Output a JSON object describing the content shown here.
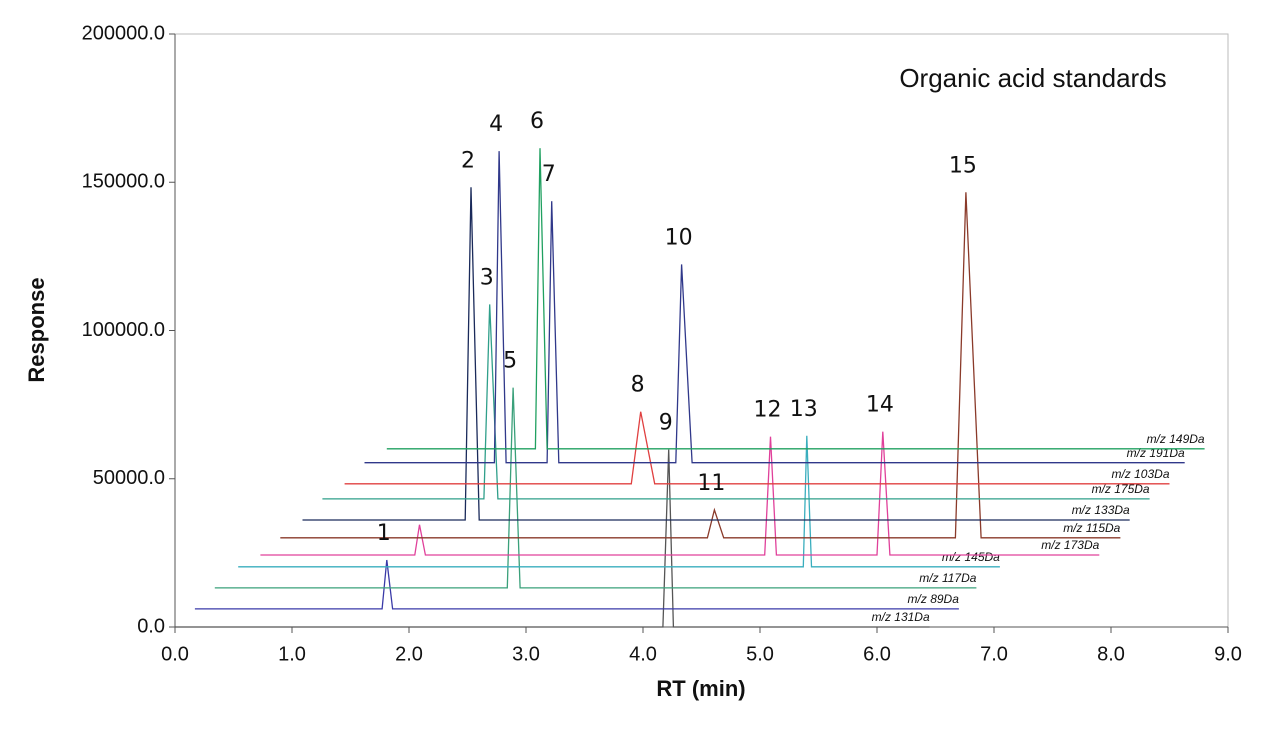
{
  "chart_data": {
    "type": "line",
    "title": "Organic acid standards",
    "xlabel": "RT (min)",
    "ylabel": "Response",
    "xlim": [
      0,
      9
    ],
    "ylim": [
      0,
      200000
    ],
    "xticks": [
      {
        "value": 0,
        "label": "0.0"
      },
      {
        "value": 1,
        "label": "1.0"
      },
      {
        "value": 2,
        "label": "2.0"
      },
      {
        "value": 3,
        "label": "3.0"
      },
      {
        "value": 4,
        "label": "4.0"
      },
      {
        "value": 5,
        "label": "5.0"
      },
      {
        "value": 6,
        "label": "6.0"
      },
      {
        "value": 7,
        "label": "7.0"
      },
      {
        "value": 8,
        "label": "8.0"
      },
      {
        "value": 9,
        "label": "9.0"
      }
    ],
    "yticks": [
      {
        "value": 0,
        "label": "0.0"
      },
      {
        "value": 50000,
        "label": "50000.0"
      },
      {
        "value": 100000,
        "label": "100000.0"
      },
      {
        "value": 150000,
        "label": "150000.0"
      },
      {
        "value": 200000,
        "label": "200000.0"
      }
    ],
    "series": [
      {
        "name": "m/z 131Da",
        "color": "#555555",
        "x": [
          0.0,
          4.17,
          4.22,
          4.26,
          6.45
        ],
        "values": [
          0,
          0,
          59800,
          0,
          0
        ]
      },
      {
        "name": "m/z 89Da",
        "color": "#3a3aa8",
        "x": [
          0.17,
          1.77,
          1.81,
          1.86,
          6.7
        ],
        "values": [
          6100,
          6100,
          22600,
          6100,
          6100
        ]
      },
      {
        "name": "m/z 117Da",
        "color": "#3aa07a",
        "x": [
          0.34,
          2.84,
          2.89,
          2.95,
          6.85
        ],
        "values": [
          13200,
          13200,
          80700,
          13200,
          13200
        ]
      },
      {
        "name": "m/z 145Da",
        "color": "#3aaebe",
        "x": [
          0.54,
          5.37,
          5.4,
          5.44,
          7.05
        ],
        "values": [
          20300,
          20300,
          64500,
          20300,
          20300
        ]
      },
      {
        "name": "m/z 173Da",
        "color": "#e0409a",
        "x": [
          0.73,
          2.05,
          2.09,
          2.14,
          5.04,
          5.09,
          5.14,
          6.0,
          6.05,
          6.11,
          7.9
        ],
        "values": [
          24300,
          24300,
          34500,
          24300,
          24300,
          64200,
          24300,
          24300,
          65900,
          24300,
          24300
        ]
      },
      {
        "name": "m/z 115Da",
        "color": "#8a3a2a",
        "x": [
          0.9,
          4.55,
          4.61,
          4.69,
          6.67,
          6.76,
          6.89,
          8.08
        ],
        "values": [
          30100,
          30100,
          39500,
          30100,
          30100,
          146600,
          30100,
          30100
        ]
      },
      {
        "name": "m/z 133Da",
        "color": "#1a2a5a",
        "x": [
          1.09,
          2.48,
          2.53,
          2.6,
          8.16
        ],
        "values": [
          36100,
          36100,
          148300,
          36100,
          36100
        ]
      },
      {
        "name": "m/z 175Da",
        "color": "#2f9f8a",
        "x": [
          1.26,
          2.64,
          2.69,
          2.76,
          8.33
        ],
        "values": [
          43200,
          43200,
          108800,
          43200,
          43200
        ]
      },
      {
        "name": "m/z 103Da",
        "color": "#e04040",
        "x": [
          1.45,
          3.9,
          3.98,
          4.1,
          8.5
        ],
        "values": [
          48300,
          48300,
          72600,
          48300,
          48300
        ]
      },
      {
        "name": "m/z 191Da",
        "color": "#30388a",
        "x": [
          1.62,
          2.73,
          2.77,
          2.83,
          3.18,
          3.22,
          3.28,
          4.28,
          4.33,
          4.42,
          8.63
        ],
        "values": [
          55400,
          55400,
          160500,
          55400,
          55400,
          143600,
          55400,
          55400,
          122300,
          55400,
          55400
        ]
      },
      {
        "name": "m/z 149Da",
        "color": "#20a060",
        "x": [
          1.81,
          3.08,
          3.12,
          3.18,
          8.8
        ],
        "values": [
          60100,
          60100,
          161500,
          60100,
          60100
        ]
      }
    ],
    "annotations": [
      {
        "text": "1",
        "x": 1.81,
        "y": 22600
      },
      {
        "text": "2",
        "x": 2.53,
        "y": 148300
      },
      {
        "text": "3",
        "x": 2.69,
        "y": 108800
      },
      {
        "text": "4",
        "x": 2.77,
        "y": 160500
      },
      {
        "text": "5",
        "x": 2.89,
        "y": 80700
      },
      {
        "text": "6",
        "x": 3.12,
        "y": 161500
      },
      {
        "text": "7",
        "x": 3.22,
        "y": 143600
      },
      {
        "text": "8",
        "x": 3.98,
        "y": 72600
      },
      {
        "text": "9",
        "x": 4.22,
        "y": 59800
      },
      {
        "text": "10",
        "x": 4.33,
        "y": 122300
      },
      {
        "text": "11",
        "x": 4.61,
        "y": 39500
      },
      {
        "text": "12",
        "x": 5.09,
        "y": 64200
      },
      {
        "text": "13",
        "x": 5.4,
        "y": 64500
      },
      {
        "text": "14",
        "x": 6.05,
        "y": 65900
      },
      {
        "text": "15",
        "x": 6.76,
        "y": 146600
      }
    ]
  }
}
